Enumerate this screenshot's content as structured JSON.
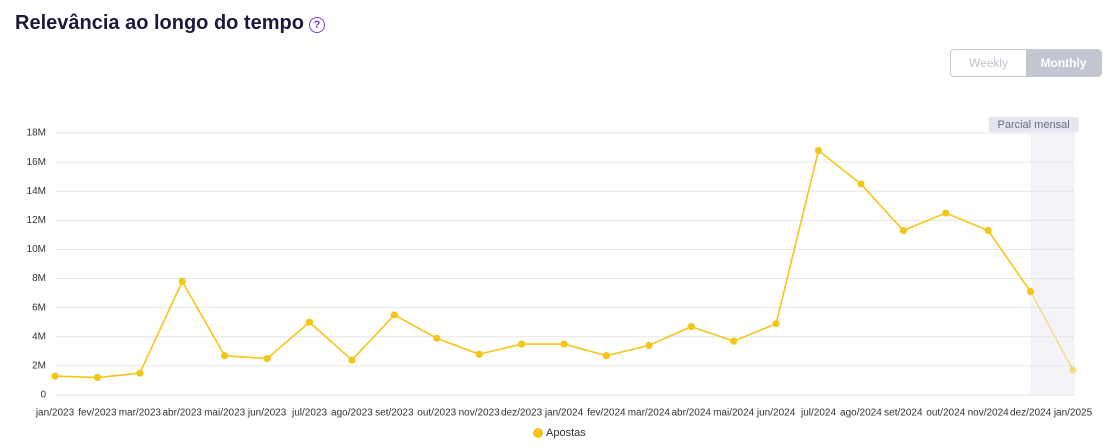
{
  "header": {
    "title": "Relevância ao longo do tempo",
    "help_icon": "?"
  },
  "view_toggle": {
    "options": [
      "Weekly",
      "Monthly"
    ],
    "active": 1
  },
  "chart_data": {
    "type": "line",
    "categories": [
      "jan/2023",
      "fev/2023",
      "mar/2023",
      "abr/2023",
      "mai/2023",
      "jun/2023",
      "jul/2023",
      "ago/2023",
      "set/2023",
      "out/2023",
      "nov/2023",
      "dez/2023",
      "jan/2024",
      "fev/2024",
      "mar/2024",
      "abr/2024",
      "mai/2024",
      "jun/2024",
      "jul/2024",
      "ago/2024",
      "set/2024",
      "out/2024",
      "nov/2024",
      "dez/2024",
      "jan/2025"
    ],
    "series": [
      {
        "name": "Apostas",
        "color": "#f5c518",
        "values": [
          1300000,
          1200000,
          1500000,
          7800000,
          2700000,
          2500000,
          5000000,
          2400000,
          5500000,
          3900000,
          2800000,
          3500000,
          3500000,
          2700000,
          3400000,
          4700000,
          3700000,
          4900000,
          16800000,
          14500000,
          11300000,
          12500000,
          11300000,
          7100000,
          1700000
        ]
      }
    ],
    "ylim": [
      0,
      18000000
    ],
    "yticks": [
      0,
      {
        "value": 2000000,
        "label": "2M"
      },
      {
        "value": 4000000,
        "label": "4M"
      },
      {
        "value": 6000000,
        "label": "6M"
      },
      {
        "value": 8000000,
        "label": "8M"
      },
      {
        "value": 10000000,
        "label": "10M"
      },
      {
        "value": 12000000,
        "label": "12M"
      },
      {
        "value": 14000000,
        "label": "14M"
      },
      {
        "value": 16000000,
        "label": "16M"
      },
      {
        "value": 18000000,
        "label": "18M"
      }
    ],
    "grid": true,
    "partial_period": {
      "label": "Parcial mensal",
      "start": "dez/2024"
    }
  }
}
